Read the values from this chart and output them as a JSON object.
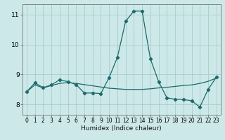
{
  "title": "",
  "xlabel": "Humidex (Indice chaleur)",
  "ylabel": "",
  "background_color": "#cce8e8",
  "grid_color": "#aacccc",
  "line_color": "#1a6b6b",
  "xlim": [
    -0.5,
    23.5
  ],
  "ylim": [
    7.65,
    11.35
  ],
  "yticks": [
    8,
    9,
    10,
    11
  ],
  "xticks": [
    0,
    1,
    2,
    3,
    4,
    5,
    6,
    7,
    8,
    9,
    10,
    11,
    12,
    13,
    14,
    15,
    16,
    17,
    18,
    19,
    20,
    21,
    22,
    23
  ],
  "series1_x": [
    0,
    1,
    2,
    3,
    4,
    5,
    6,
    7,
    8,
    9,
    10,
    11,
    12,
    13,
    14,
    15,
    16,
    17,
    18,
    19,
    20,
    21,
    22,
    23
  ],
  "series1_y": [
    8.42,
    8.72,
    8.56,
    8.65,
    8.82,
    8.76,
    8.66,
    8.38,
    8.38,
    8.36,
    8.9,
    9.57,
    10.78,
    11.12,
    11.12,
    9.52,
    8.76,
    8.22,
    8.17,
    8.16,
    8.12,
    7.91,
    8.5,
    8.91
  ],
  "series2_x": [
    0,
    1,
    2,
    3,
    4,
    5,
    6,
    7,
    8,
    9,
    10,
    11,
    12,
    13,
    14,
    15,
    16,
    17,
    18,
    19,
    20,
    21,
    22,
    23
  ],
  "series2_y": [
    8.42,
    8.65,
    8.55,
    8.63,
    8.7,
    8.73,
    8.7,
    8.66,
    8.62,
    8.58,
    8.54,
    8.52,
    8.5,
    8.5,
    8.5,
    8.52,
    8.55,
    8.57,
    8.6,
    8.63,
    8.65,
    8.7,
    8.77,
    8.88
  ]
}
